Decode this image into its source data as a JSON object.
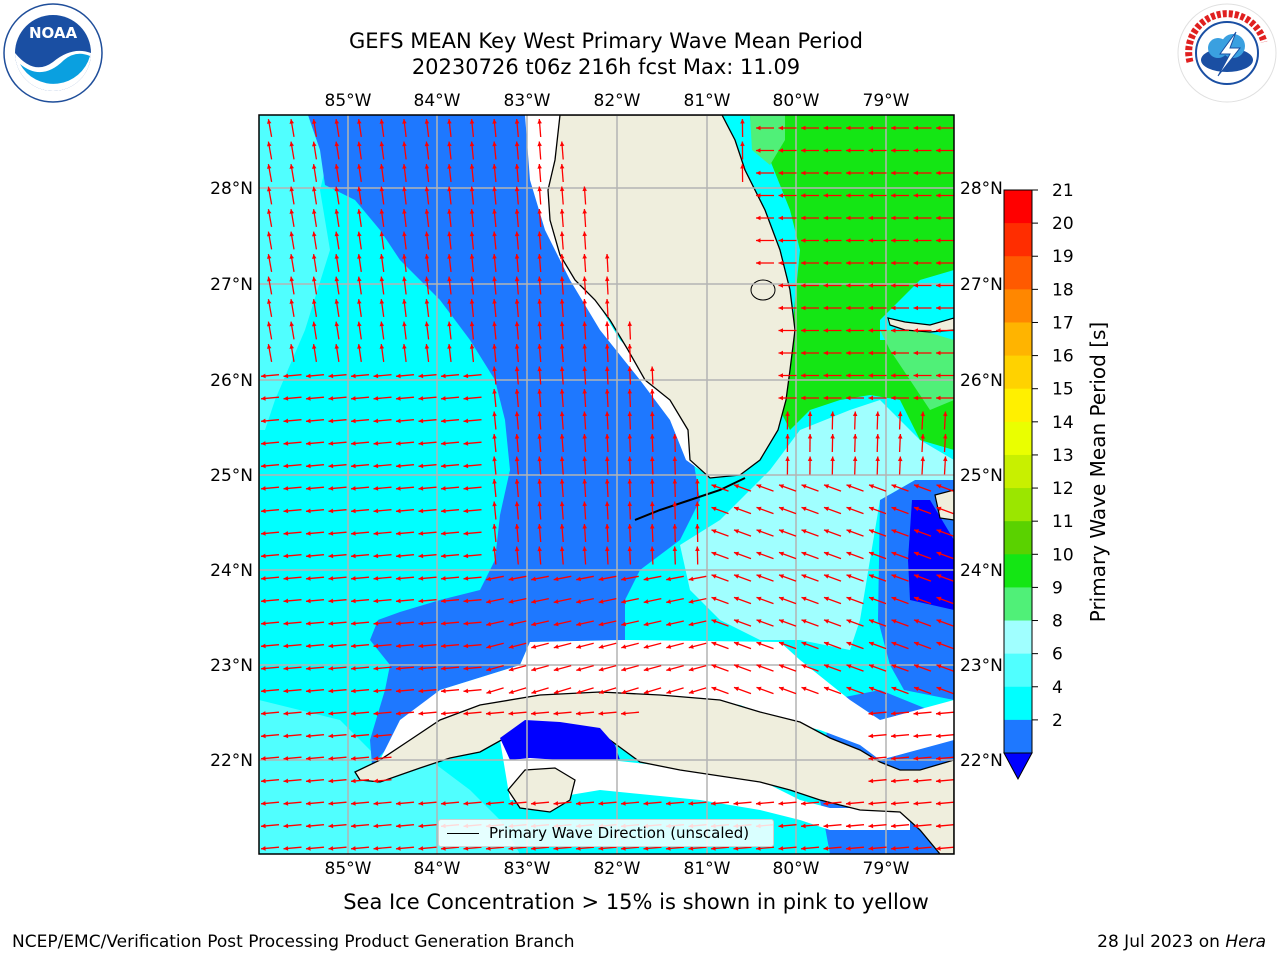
{
  "title": {
    "line1": "GEFS MEAN Key West Primary Wave Mean Period",
    "line2": "20230726 t06z 216h fcst   Max: 11.09"
  },
  "logos": {
    "left": "NOAA",
    "right": "NATIONAL WEATHER SERVICE"
  },
  "axes": {
    "lon_ticks": [
      "85°W",
      "84°W",
      "83°W",
      "82°W",
      "81°W",
      "80°W",
      "79°W"
    ],
    "lat_ticks": [
      "28°N",
      "27°N",
      "26°N",
      "25°N",
      "24°N",
      "23°N",
      "22°N"
    ]
  },
  "colorbar": {
    "label": "Primary Wave Mean Period [s]",
    "ticks": [
      "21",
      "20",
      "19",
      "18",
      "17",
      "16",
      "15",
      "14",
      "13",
      "12",
      "11",
      "10",
      "9",
      "8",
      "6",
      "4",
      "2"
    ],
    "colors_top_to_bottom": [
      "#ff0000",
      "#ff2d00",
      "#ff5a00",
      "#ff8700",
      "#ffb400",
      "#ffd200",
      "#fff000",
      "#eaff00",
      "#c8f000",
      "#9be600",
      "#5ad200",
      "#14e614",
      "#50f078",
      "#a0ffff",
      "#50ffff",
      "#00ffff",
      "#1e78ff"
    ],
    "under_color": "#0000ff"
  },
  "colors": {
    "land": "#efeedd",
    "deep_blue": "#0000ff",
    "blue": "#1e78ff",
    "cyan": "#00ffff",
    "light_cyan": "#50ffff",
    "pale_cyan": "#a0ffff",
    "green": "#14e614",
    "mid_green": "#50f078",
    "arrow": "#ff0000",
    "grid": "#b4b4b4"
  },
  "legend": {
    "label": "Primary Wave Direction (unscaled)"
  },
  "sea_ice_note": "Sea Ice Concentration > 15% is shown in pink to yellow",
  "footer": {
    "left": "NCEP/EMC/Verification Post Processing Product Generation Branch",
    "date": "28 Jul 2023 on",
    "host": "Hera"
  }
}
